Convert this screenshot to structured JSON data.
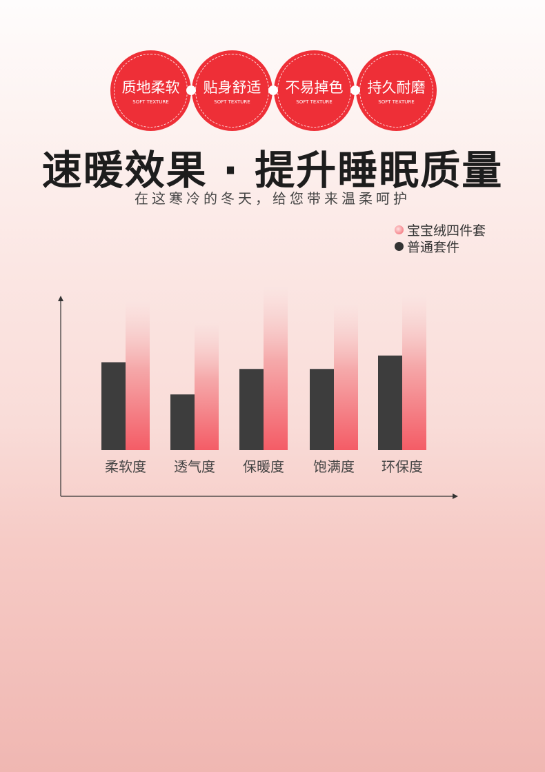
{
  "badges": [
    {
      "title": "质地柔软",
      "subtitle": "SOFT TEXTURE"
    },
    {
      "title": "贴身舒适",
      "subtitle": "SOFT TEXTURE"
    },
    {
      "title": "不易掉色",
      "subtitle": "SOFT TEXTURE"
    },
    {
      "title": "持久耐磨",
      "subtitle": "SOFT TEXTURE"
    }
  ],
  "headline": "速暖效果 · 提升睡眠质量",
  "subheadline": "在这寒冷的冬天，给您带来温柔呵护",
  "colors": {
    "accent": "#ee2f37",
    "dark_series": "#3d3d3d",
    "pink_series": "#f45c66"
  },
  "chart_data": {
    "type": "bar",
    "categories": [
      "柔软度",
      "透气度",
      "保暖度",
      "饱满度",
      "环保度"
    ],
    "series": [
      {
        "name": "宝宝绒四件套",
        "values": [
          223,
          193,
          243,
          218,
          231
        ],
        "color": "#f45c66"
      },
      {
        "name": "普通套件",
        "values": [
          131,
          83,
          121,
          121,
          141
        ],
        "color": "#3d3d3d"
      }
    ],
    "ylim": [
      0,
      260
    ],
    "grid": false,
    "legend": "top-right",
    "xlabel": "",
    "ylabel": ""
  }
}
